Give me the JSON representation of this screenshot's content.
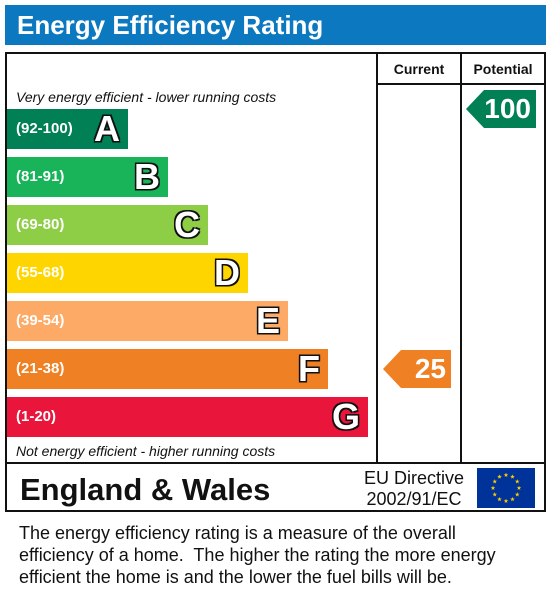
{
  "title": "Energy Efficiency Rating",
  "columns": {
    "current": "Current",
    "potential": "Potential"
  },
  "top_note": "Very energy efficient - lower running costs",
  "bottom_note": "Not energy efficient - higher running costs",
  "colors": {
    "header": "#0b78c0",
    "A": "#008054",
    "B": "#19b459",
    "C": "#8dce46",
    "D": "#ffd500",
    "E": "#fcaa65",
    "F": "#ef8023",
    "G": "#e9153b"
  },
  "chart_data": {
    "type": "bar",
    "categories": [
      "A",
      "B",
      "C",
      "D",
      "E",
      "F",
      "G"
    ],
    "bands": [
      {
        "letter": "A",
        "range": "(92-100)",
        "min": 92,
        "max": 100,
        "color": "#008054"
      },
      {
        "letter": "B",
        "range": "(81-91)",
        "min": 81,
        "max": 91,
        "color": "#19b459"
      },
      {
        "letter": "C",
        "range": "(69-80)",
        "min": 69,
        "max": 80,
        "color": "#8dce46"
      },
      {
        "letter": "D",
        "range": "(55-68)",
        "min": 55,
        "max": 68,
        "color": "#ffd500"
      },
      {
        "letter": "E",
        "range": "(39-54)",
        "min": 39,
        "max": 54,
        "color": "#fcaa65"
      },
      {
        "letter": "F",
        "range": "(21-38)",
        "min": 21,
        "max": 38,
        "color": "#ef8023"
      },
      {
        "letter": "G",
        "range": "(1-20)",
        "min": 1,
        "max": 20,
        "color": "#e9153b"
      }
    ],
    "current": {
      "value": 25,
      "band": "F"
    },
    "potential": {
      "value": 100,
      "band": "A"
    }
  },
  "footer": {
    "region": "England & Wales",
    "directive_line1": "EU Directive",
    "directive_line2": "2002/91/EC",
    "flag": "eu-flag-icon"
  },
  "description": [
    "The energy efficiency rating is a measure of the overall",
    "efficiency of a home.  The higher the rating the more energy",
    "efficient the home is and the lower the fuel bills will be."
  ]
}
